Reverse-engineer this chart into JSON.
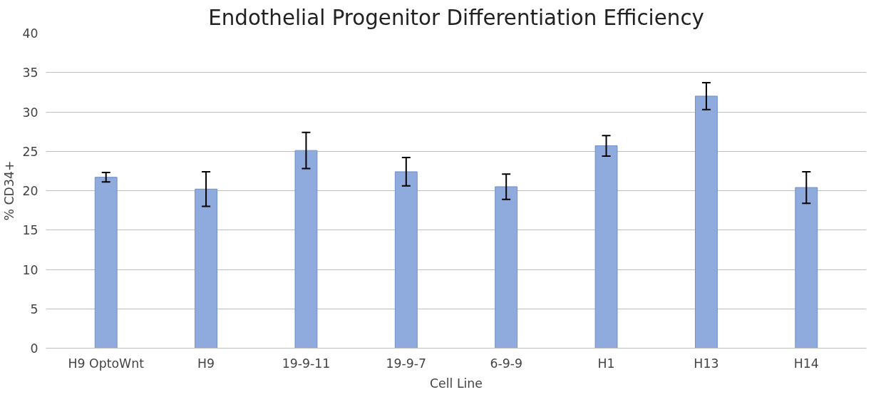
{
  "chart_data": {
    "type": "bar",
    "title": "Endothelial Progenitor Differentiation Efficiency",
    "xlabel": "Cell Line",
    "ylabel": "% CD34+",
    "categories": [
      "H9 OptoWnt",
      "H9",
      "19-9-11",
      "19-9-7",
      "6-9-9",
      "H1",
      "H13",
      "H14"
    ],
    "values": [
      21.7,
      20.2,
      25.1,
      22.4,
      20.5,
      25.7,
      32.0,
      20.4
    ],
    "errors": [
      0.6,
      2.2,
      2.3,
      1.8,
      1.6,
      1.3,
      1.7,
      2.0
    ],
    "color": "#8faadc",
    "ylim": [
      0,
      40
    ],
    "yticks": [
      0,
      5,
      10,
      15,
      20,
      25,
      30,
      35,
      40
    ],
    "grid": "y"
  }
}
